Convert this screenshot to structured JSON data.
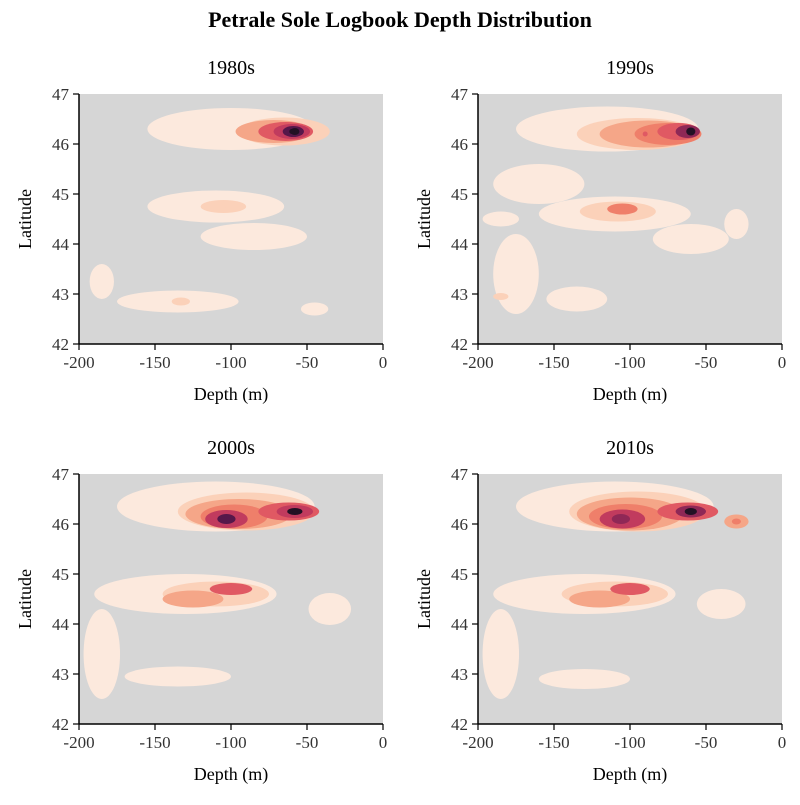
{
  "title": "Petrale Sole Logbook Depth Distribution",
  "colors": {
    "background": "#d6d6d6",
    "levels": [
      "#fce9dd",
      "#fbd1b9",
      "#f5a688",
      "#ef7f6a",
      "#e05963",
      "#c13b5e",
      "#8f2856",
      "#56184a",
      "#231124"
    ]
  },
  "chart_data": [
    {
      "type": "heatmap",
      "title": "1980s",
      "xlabel": "Depth (m)",
      "ylabel": "Latitude",
      "xlim": [
        -200,
        0
      ],
      "ylim": [
        42,
        47
      ],
      "xticks": [
        "-200",
        "-150",
        "-100",
        "-50",
        "0"
      ],
      "yticks": [
        "42",
        "43",
        "44",
        "45",
        "46",
        "47"
      ],
      "density_peaks": [
        {
          "depth": -60,
          "lat": 46.25,
          "level": 9
        },
        {
          "depth": -75,
          "lat": 46.25,
          "level": 5
        },
        {
          "depth": -105,
          "lat": 44.75,
          "level": 2
        },
        {
          "depth": -135,
          "lat": 42.85,
          "level": 2
        }
      ]
    },
    {
      "type": "heatmap",
      "title": "1990s",
      "xlabel": "Depth (m)",
      "ylabel": "Latitude",
      "xlim": [
        -200,
        0
      ],
      "ylim": [
        42,
        47
      ],
      "xticks": [
        "-200",
        "-150",
        "-100",
        "-50",
        "0"
      ],
      "yticks": [
        "42",
        "43",
        "44",
        "45",
        "46",
        "47"
      ],
      "density_peaks": [
        {
          "depth": -60,
          "lat": 46.25,
          "level": 9
        },
        {
          "depth": -90,
          "lat": 46.2,
          "level": 5
        },
        {
          "depth": -105,
          "lat": 44.7,
          "level": 4
        },
        {
          "depth": -185,
          "lat": 42.95,
          "level": 2
        }
      ]
    },
    {
      "type": "heatmap",
      "title": "2000s",
      "xlabel": "Depth (m)",
      "ylabel": "Latitude",
      "xlim": [
        -200,
        0
      ],
      "ylim": [
        42,
        47
      ],
      "xticks": [
        "-200",
        "-150",
        "-100",
        "-50",
        "0"
      ],
      "yticks": [
        "42",
        "43",
        "44",
        "45",
        "46",
        "47"
      ],
      "density_peaks": [
        {
          "depth": -58,
          "lat": 46.25,
          "level": 9
        },
        {
          "depth": -103,
          "lat": 46.1,
          "level": 8
        },
        {
          "depth": -100,
          "lat": 44.7,
          "level": 5
        },
        {
          "depth": -130,
          "lat": 44.45,
          "level": 3
        }
      ]
    },
    {
      "type": "heatmap",
      "title": "2010s",
      "xlabel": "Depth (m)",
      "ylabel": "Latitude",
      "xlim": [
        -200,
        0
      ],
      "ylim": [
        42,
        47
      ],
      "xticks": [
        "-200",
        "-150",
        "-100",
        "-50",
        "0"
      ],
      "yticks": [
        "42",
        "43",
        "44",
        "45",
        "46",
        "47"
      ],
      "density_peaks": [
        {
          "depth": -60,
          "lat": 46.25,
          "level": 9
        },
        {
          "depth": -105,
          "lat": 46.1,
          "level": 7
        },
        {
          "depth": -100,
          "lat": 44.7,
          "level": 5
        },
        {
          "depth": -30,
          "lat": 46.05,
          "level": 4
        }
      ]
    }
  ]
}
